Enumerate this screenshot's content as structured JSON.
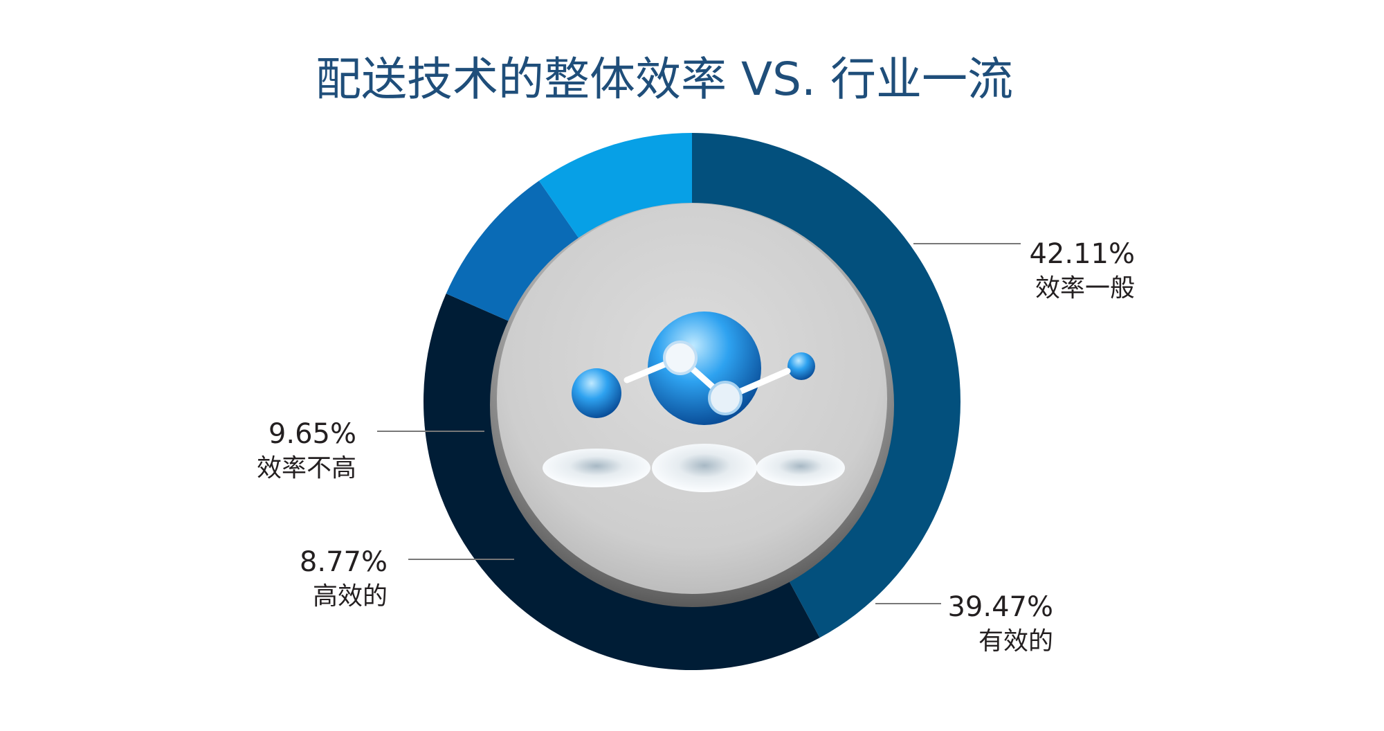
{
  "chart_data": {
    "type": "pie",
    "variant": "donut",
    "title": "配送技术的整体效率 VS. 行业一流",
    "categories": [
      "效率一般",
      "有效的",
      "高效的",
      "效率不高"
    ],
    "values": [
      42.11,
      39.47,
      8.77,
      9.65
    ],
    "value_labels": [
      "42.11%",
      "39.47%",
      "8.77%",
      "9.65%"
    ],
    "unit": "%",
    "start_angle_deg": 0,
    "direction": "clockwise",
    "legend": "none",
    "center_graphic": "molecule-network-icon"
  },
  "colors": {
    "title": "#1f4e7a",
    "slices": [
      "#03507d",
      "#001d36",
      "#0a6bb6",
      "#07a0e6"
    ],
    "text": "#231f20",
    "leader": "#777777",
    "inner_disc": "#cfcfcf",
    "inner_ring": "#9a9a9a"
  }
}
